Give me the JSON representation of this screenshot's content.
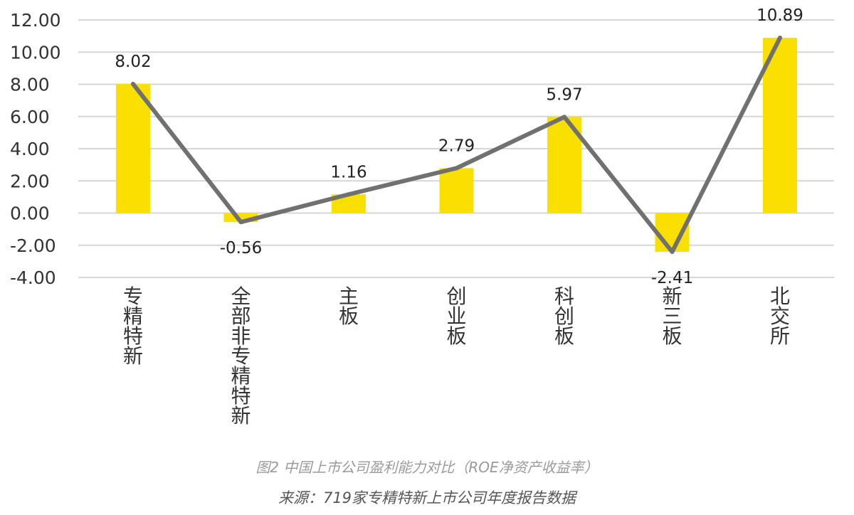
{
  "chart_data": {
    "type": "bar",
    "categories": [
      "专精特新",
      "全部非专精特新",
      "主板",
      "创业板",
      "科创板",
      "新三板",
      "北交所"
    ],
    "values": [
      8.02,
      -0.56,
      1.16,
      2.79,
      5.97,
      -2.41,
      10.89
    ],
    "value_labels": [
      "8.02",
      "-0.56",
      "1.16",
      "2.79",
      "5.97",
      "-2.41",
      "10.89"
    ],
    "overlay_line": true,
    "yticks": [
      "12.00",
      "10.00",
      "8.00",
      "6.00",
      "4.00",
      "2.00",
      "0.00",
      "-2.00",
      "-4.00"
    ],
    "ylim": [
      -4,
      12
    ],
    "grid": true,
    "bar_color": "#F9E000",
    "line_color": "#707070",
    "grid_color": "#d6d6d6"
  },
  "caption": {
    "title": "图2 中国上市公司盈利能力对比（ROE净资产收益率）",
    "source": "来源：719家专精特新上市公司年度报告数据"
  }
}
